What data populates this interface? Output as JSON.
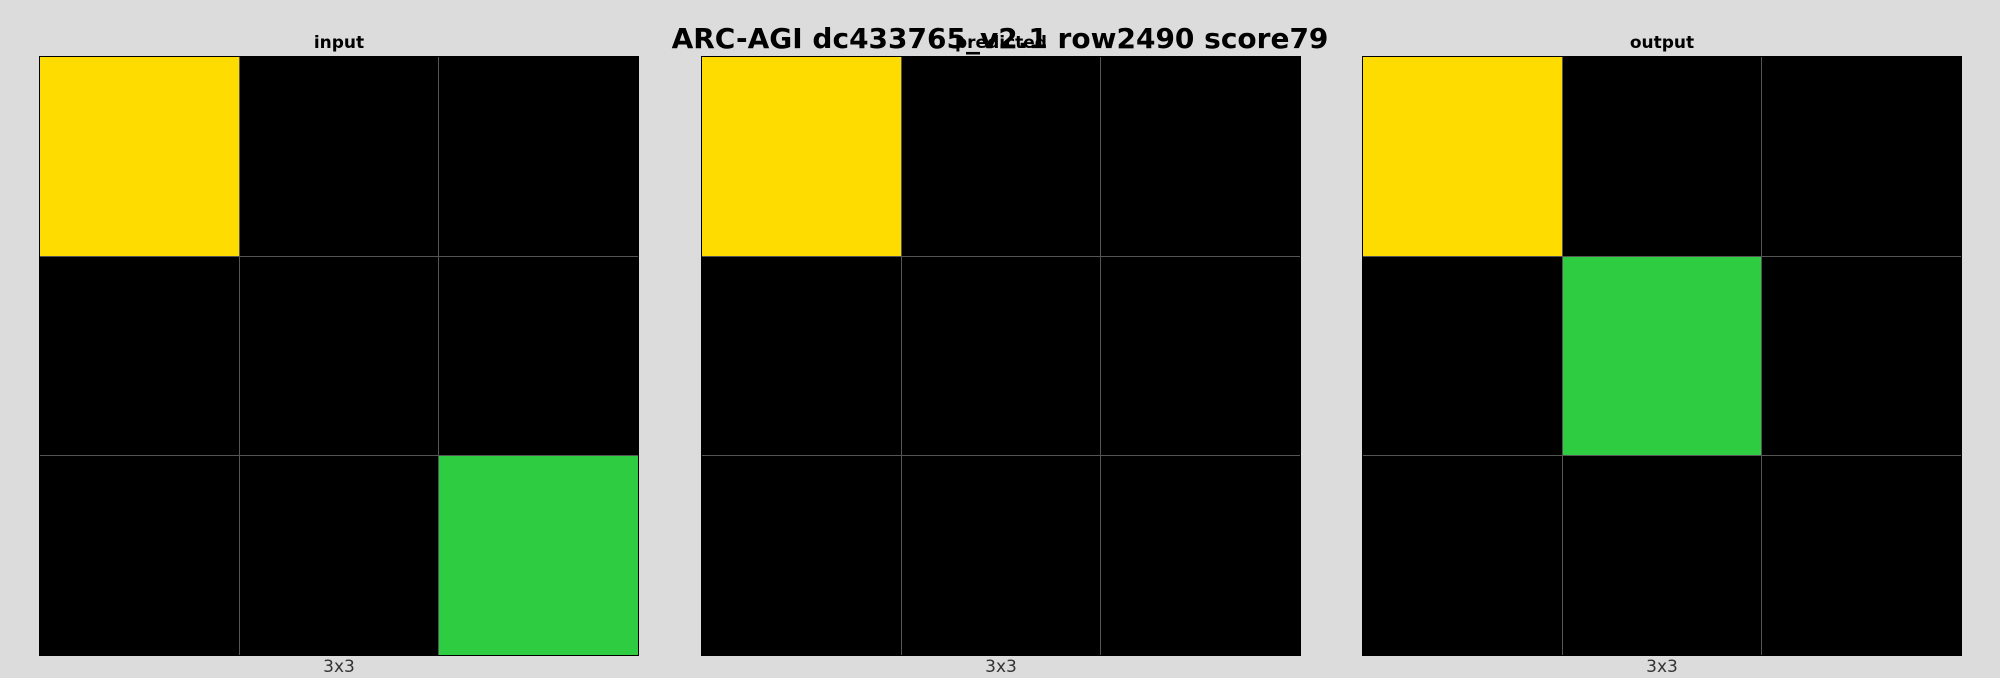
{
  "title": "ARC-AGI dc433765_v2.1 row2490 score79",
  "palette": {
    "0": "#000000",
    "3": "#2ecc40",
    "4": "#ffdc00"
  },
  "panels": [
    {
      "title": "input",
      "size_label": "3x3",
      "grid": [
        [
          4,
          0,
          0
        ],
        [
          0,
          0,
          0
        ],
        [
          0,
          0,
          3
        ]
      ]
    },
    {
      "title": "predicted",
      "size_label": "3x3",
      "grid": [
        [
          4,
          0,
          0
        ],
        [
          0,
          0,
          0
        ],
        [
          0,
          0,
          0
        ]
      ]
    },
    {
      "title": "output",
      "size_label": "3x3",
      "grid": [
        [
          4,
          0,
          0
        ],
        [
          0,
          3,
          0
        ],
        [
          0,
          0,
          0
        ]
      ]
    }
  ]
}
